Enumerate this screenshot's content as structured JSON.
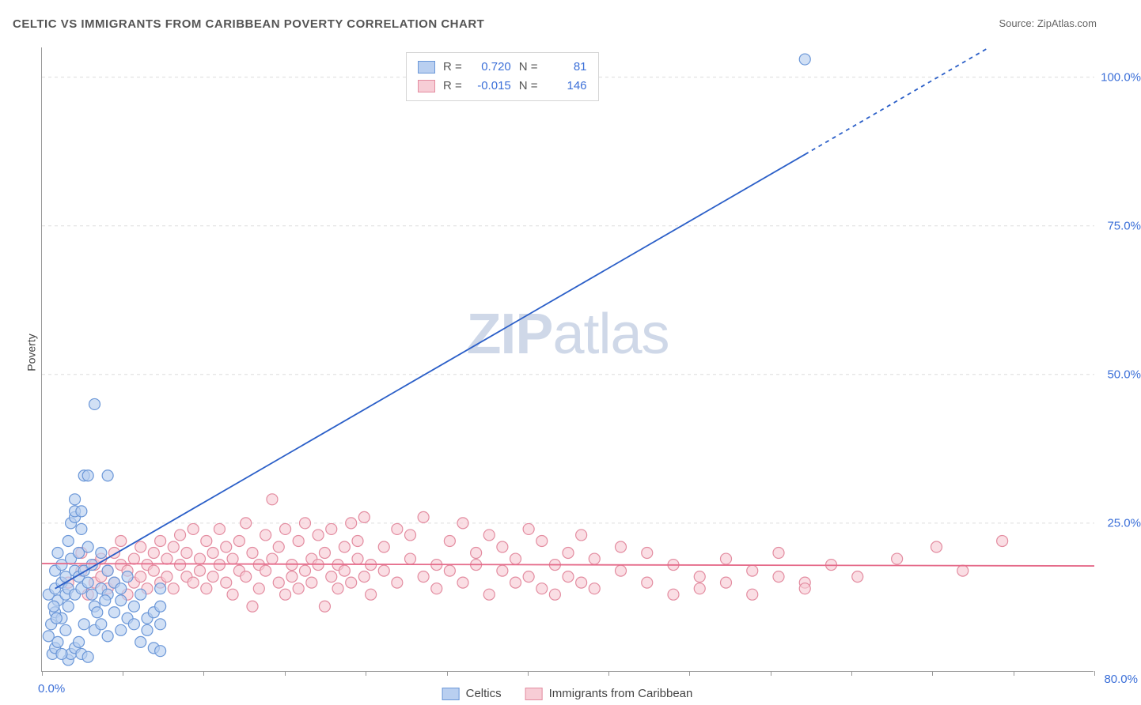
{
  "title": "CELTIC VS IMMIGRANTS FROM CARIBBEAN POVERTY CORRELATION CHART",
  "source_label": "Source: ",
  "source_value": "ZipAtlas.com",
  "ylabel": "Poverty",
  "watermark_a": "ZIP",
  "watermark_b": "atlas",
  "chart": {
    "type": "scatter",
    "background_color": "#ffffff",
    "grid_color": "#dddddd",
    "axis_color": "#999999",
    "xlim": [
      0,
      80
    ],
    "ylim": [
      0,
      105
    ],
    "ytick_labels": [
      "25.0%",
      "50.0%",
      "75.0%",
      "100.0%"
    ],
    "ytick_values": [
      25,
      50,
      75,
      100
    ],
    "xtick_label_min": "0.0%",
    "xtick_label_max": "80.0%",
    "xtick_values": [
      0,
      6.15,
      12.3,
      18.46,
      24.6,
      30.77,
      36.92,
      43.08,
      49.23,
      55.38,
      61.54,
      67.69,
      73.85,
      80
    ],
    "yticklabel_color": "#3b6fd8",
    "xticklabel_color": "#3b6fd8",
    "marker_radius": 7,
    "marker_stroke_width": 1.2,
    "line_width": 1.8,
    "dash_pattern": "5,5"
  },
  "series": {
    "celtics": {
      "label": "Celtics",
      "fill": "#b9cff0",
      "stroke": "#6b97d8",
      "line_color": "#2b5fc8",
      "R": "0.720",
      "N": "81",
      "regression": {
        "x1": 1,
        "y1": 14,
        "x2": 58,
        "y2": 87,
        "x2_ext": 72,
        "y2_ext": 105
      },
      "points": [
        [
          0.5,
          13
        ],
        [
          0.5,
          6
        ],
        [
          0.8,
          3
        ],
        [
          1,
          10
        ],
        [
          1,
          17
        ],
        [
          1,
          14
        ],
        [
          1.2,
          20
        ],
        [
          1.2,
          12
        ],
        [
          1.5,
          15
        ],
        [
          1.5,
          18
        ],
        [
          1.5,
          9
        ],
        [
          1.8,
          13
        ],
        [
          1.8,
          16
        ],
        [
          2,
          22
        ],
        [
          2,
          11
        ],
        [
          2,
          14
        ],
        [
          2.2,
          19
        ],
        [
          2.2,
          25
        ],
        [
          2.5,
          13
        ],
        [
          2.5,
          17
        ],
        [
          2.5,
          26
        ],
        [
          2.5,
          27
        ],
        [
          2.5,
          29
        ],
        [
          2.8,
          16
        ],
        [
          2.8,
          20
        ],
        [
          3,
          14
        ],
        [
          3,
          24
        ],
        [
          3,
          27
        ],
        [
          3.2,
          17
        ],
        [
          3.2,
          33
        ],
        [
          3.5,
          15
        ],
        [
          3.5,
          21
        ],
        [
          3.5,
          33
        ],
        [
          3.8,
          13
        ],
        [
          3.8,
          18
        ],
        [
          4,
          45
        ],
        [
          4,
          7
        ],
        [
          4,
          11
        ],
        [
          4.5,
          8
        ],
        [
          4.5,
          14
        ],
        [
          4.5,
          20
        ],
        [
          5,
          6
        ],
        [
          5,
          13
        ],
        [
          5,
          17
        ],
        [
          5,
          33
        ],
        [
          5.5,
          15
        ],
        [
          5.5,
          10
        ],
        [
          6,
          7
        ],
        [
          6,
          12
        ],
        [
          6,
          14
        ],
        [
          6.5,
          9
        ],
        [
          6.5,
          16
        ],
        [
          7,
          8
        ],
        [
          7,
          11
        ],
        [
          7.5,
          5
        ],
        [
          7.5,
          13
        ],
        [
          8,
          9
        ],
        [
          8,
          7
        ],
        [
          8.5,
          10
        ],
        [
          8.5,
          4
        ],
        [
          9,
          8
        ],
        [
          9,
          11
        ],
        [
          9,
          3.5
        ],
        [
          9,
          14
        ],
        [
          2,
          2
        ],
        [
          2.2,
          3
        ],
        [
          2.5,
          4
        ],
        [
          2.8,
          5
        ],
        [
          3,
          3
        ],
        [
          3.5,
          2.5
        ],
        [
          1,
          4
        ],
        [
          1.2,
          5
        ],
        [
          1.5,
          3
        ],
        [
          1.8,
          7
        ],
        [
          0.7,
          8
        ],
        [
          0.9,
          11
        ],
        [
          1.1,
          9
        ],
        [
          3.2,
          8
        ],
        [
          4.2,
          10
        ],
        [
          4.8,
          12
        ],
        [
          58,
          103
        ]
      ]
    },
    "caribbean": {
      "label": "Immigrants from Caribbean",
      "fill": "#f7cdd6",
      "stroke": "#e38ca0",
      "line_color": "#e56b8a",
      "R": "-0.015",
      "N": "146",
      "regression": {
        "x1": 0,
        "y1": 18.2,
        "x2": 80,
        "y2": 17.8
      },
      "points": [
        [
          2,
          15
        ],
        [
          3,
          17
        ],
        [
          3,
          20
        ],
        [
          3.5,
          13
        ],
        [
          4,
          18
        ],
        [
          4,
          15
        ],
        [
          4.5,
          16
        ],
        [
          4.5,
          19
        ],
        [
          5,
          14
        ],
        [
          5,
          17
        ],
        [
          5.5,
          20
        ],
        [
          5.5,
          15
        ],
        [
          6,
          18
        ],
        [
          6,
          22
        ],
        [
          6.5,
          13
        ],
        [
          6.5,
          17
        ],
        [
          7,
          19
        ],
        [
          7,
          15
        ],
        [
          7.5,
          21
        ],
        [
          7.5,
          16
        ],
        [
          8,
          18
        ],
        [
          8,
          14
        ],
        [
          8.5,
          20
        ],
        [
          8.5,
          17
        ],
        [
          9,
          15
        ],
        [
          9,
          22
        ],
        [
          9.5,
          19
        ],
        [
          9.5,
          16
        ],
        [
          10,
          21
        ],
        [
          10,
          14
        ],
        [
          10.5,
          18
        ],
        [
          10.5,
          23
        ],
        [
          11,
          16
        ],
        [
          11,
          20
        ],
        [
          11.5,
          15
        ],
        [
          11.5,
          24
        ],
        [
          12,
          19
        ],
        [
          12,
          17
        ],
        [
          12.5,
          22
        ],
        [
          12.5,
          14
        ],
        [
          13,
          20
        ],
        [
          13,
          16
        ],
        [
          13.5,
          24
        ],
        [
          13.5,
          18
        ],
        [
          14,
          15
        ],
        [
          14,
          21
        ],
        [
          14.5,
          19
        ],
        [
          14.5,
          13
        ],
        [
          15,
          22
        ],
        [
          15,
          17
        ],
        [
          15.5,
          25
        ],
        [
          15.5,
          16
        ],
        [
          16,
          11
        ],
        [
          16,
          20
        ],
        [
          16.5,
          18
        ],
        [
          16.5,
          14
        ],
        [
          17,
          23
        ],
        [
          17,
          17
        ],
        [
          17.5,
          29
        ],
        [
          17.5,
          19
        ],
        [
          18,
          15
        ],
        [
          18,
          21
        ],
        [
          18.5,
          13
        ],
        [
          18.5,
          24
        ],
        [
          19,
          18
        ],
        [
          19,
          16
        ],
        [
          19.5,
          22
        ],
        [
          19.5,
          14
        ],
        [
          20,
          25
        ],
        [
          20,
          17
        ],
        [
          20.5,
          19
        ],
        [
          20.5,
          15
        ],
        [
          21,
          23
        ],
        [
          21,
          18
        ],
        [
          21.5,
          11
        ],
        [
          21.5,
          20
        ],
        [
          22,
          16
        ],
        [
          22,
          24
        ],
        [
          22.5,
          18
        ],
        [
          22.5,
          14
        ],
        [
          23,
          21
        ],
        [
          23,
          17
        ],
        [
          23.5,
          25
        ],
        [
          23.5,
          15
        ],
        [
          24,
          19
        ],
        [
          24,
          22
        ],
        [
          24.5,
          16
        ],
        [
          24.5,
          26
        ],
        [
          25,
          18
        ],
        [
          25,
          13
        ],
        [
          26,
          21
        ],
        [
          26,
          17
        ],
        [
          27,
          24
        ],
        [
          27,
          15
        ],
        [
          28,
          19
        ],
        [
          28,
          23
        ],
        [
          29,
          16
        ],
        [
          29,
          26
        ],
        [
          30,
          18
        ],
        [
          30,
          14
        ],
        [
          31,
          22
        ],
        [
          31,
          17
        ],
        [
          32,
          25
        ],
        [
          32,
          15
        ],
        [
          33,
          20
        ],
        [
          33,
          18
        ],
        [
          34,
          13
        ],
        [
          34,
          23
        ],
        [
          35,
          17
        ],
        [
          35,
          21
        ],
        [
          36,
          15
        ],
        [
          36,
          19
        ],
        [
          37,
          24
        ],
        [
          37,
          16
        ],
        [
          38,
          14
        ],
        [
          38,
          22
        ],
        [
          39,
          18
        ],
        [
          39,
          13
        ],
        [
          40,
          20
        ],
        [
          40,
          16
        ],
        [
          41,
          23
        ],
        [
          41,
          15
        ],
        [
          42,
          19
        ],
        [
          42,
          14
        ],
        [
          44,
          21
        ],
        [
          44,
          17
        ],
        [
          46,
          15
        ],
        [
          46,
          20
        ],
        [
          48,
          13
        ],
        [
          48,
          18
        ],
        [
          50,
          16
        ],
        [
          50,
          14
        ],
        [
          52,
          19
        ],
        [
          52,
          15
        ],
        [
          54,
          17
        ],
        [
          54,
          13
        ],
        [
          56,
          20
        ],
        [
          56,
          16
        ],
        [
          58,
          15
        ],
        [
          58,
          14
        ],
        [
          60,
          18
        ],
        [
          62,
          16
        ],
        [
          65,
          19
        ],
        [
          68,
          21
        ],
        [
          70,
          17
        ],
        [
          73,
          22
        ]
      ]
    }
  },
  "stats_labels": {
    "R": "R =",
    "N": "N ="
  },
  "legend_order": [
    "celtics",
    "caribbean"
  ]
}
